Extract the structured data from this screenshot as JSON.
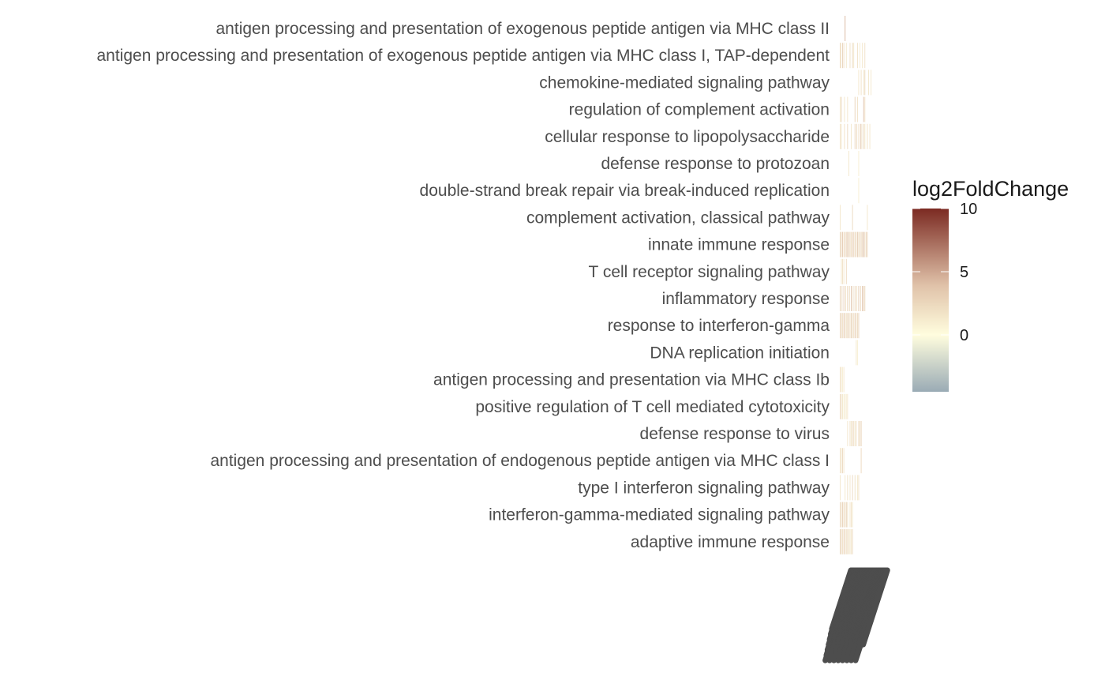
{
  "chart_data": {
    "type": "heatmap",
    "title": "",
    "xlabel": "",
    "ylabel": "",
    "rows": [
      "antigen processing and presentation of exogenous peptide antigen via MHC class II",
      "antigen processing and presentation of exogenous peptide antigen via MHC class I, TAP-dependent",
      "chemokine-mediated signaling pathway",
      "regulation of complement activation",
      "cellular response to lipopolysaccharide",
      "defense response to protozoan",
      "double-strand break repair via break-induced replication",
      "complement activation, classical pathway",
      "innate immune response",
      "T cell receptor signaling pathway",
      "inflammatory response",
      "response to interferon-gamma",
      "DNA replication initiation",
      "antigen processing and presentation via MHC class Ib",
      "positive regulation of T cell mediated cytotoxicity",
      "defense response to virus",
      "antigen processing and presentation of endogenous peptide antigen via MHC class I",
      "type I interferon signaling pathway",
      "interferon-gamma-mediated signaling pathway",
      "adaptive immune response"
    ],
    "gene_columns": 60,
    "cells": [
      [
        [
          8,
          4.5
        ]
      ],
      [
        [
          0,
          2.5
        ],
        [
          1,
          1.5
        ],
        [
          4,
          3.0
        ],
        [
          6,
          2.0
        ],
        [
          10,
          1.5
        ],
        [
          16,
          2.0
        ],
        [
          20,
          2.5
        ],
        [
          22,
          1.5
        ],
        [
          28,
          2.0
        ],
        [
          32,
          1.0
        ],
        [
          36,
          1.5
        ],
        [
          40,
          2.0
        ]
      ],
      [
        [
          30,
          1.5
        ],
        [
          34,
          2.0
        ],
        [
          38,
          1.5
        ],
        [
          40,
          2.5
        ],
        [
          46,
          1.5
        ],
        [
          50,
          1.5
        ]
      ],
      [
        [
          0,
          1.5
        ],
        [
          2,
          2.5
        ],
        [
          7,
          1.5
        ],
        [
          12,
          1.5
        ],
        [
          24,
          3.0
        ],
        [
          28,
          2.0
        ],
        [
          38,
          4.0
        ],
        [
          40,
          2.0
        ]
      ],
      [
        [
          0,
          2.0
        ],
        [
          2,
          1.5
        ],
        [
          7,
          2.0
        ],
        [
          12,
          2.5
        ],
        [
          18,
          1.5
        ],
        [
          24,
          3.0
        ],
        [
          27,
          2.5
        ],
        [
          30,
          2.0
        ],
        [
          33,
          3.5
        ],
        [
          35,
          2.0
        ],
        [
          38,
          2.5
        ],
        [
          40,
          1.5
        ],
        [
          44,
          2.0
        ],
        [
          48,
          1.5
        ]
      ],
      [
        [
          14,
          1.5
        ],
        [
          30,
          1.0
        ]
      ],
      [
        [
          30,
          1.0
        ]
      ],
      [
        [
          0,
          1.5
        ],
        [
          20,
          2.5
        ],
        [
          44,
          1.5
        ]
      ],
      [
        [
          0,
          3.0
        ],
        [
          2,
          2.5
        ],
        [
          4,
          3.5
        ],
        [
          6,
          2.0
        ],
        [
          8,
          3.0
        ],
        [
          10,
          2.5
        ],
        [
          12,
          4.0
        ],
        [
          14,
          2.5
        ],
        [
          16,
          3.0
        ],
        [
          18,
          2.0
        ],
        [
          20,
          3.5
        ],
        [
          22,
          2.5
        ],
        [
          24,
          3.0
        ],
        [
          26,
          2.0
        ],
        [
          28,
          3.5
        ],
        [
          30,
          2.5
        ],
        [
          32,
          2.0
        ],
        [
          34,
          3.0
        ],
        [
          36,
          2.5
        ],
        [
          38,
          4.5
        ],
        [
          40,
          2.0
        ],
        [
          42,
          3.0
        ],
        [
          44,
          2.5
        ]
      ],
      [
        [
          2,
          1.5
        ],
        [
          4,
          2.0
        ],
        [
          6,
          1.5
        ],
        [
          10,
          2.5
        ]
      ],
      [
        [
          0,
          3.0
        ],
        [
          3,
          2.5
        ],
        [
          6,
          3.5
        ],
        [
          9,
          2.0
        ],
        [
          12,
          3.0
        ],
        [
          15,
          2.5
        ],
        [
          18,
          4.0
        ],
        [
          21,
          2.5
        ],
        [
          24,
          3.0
        ],
        [
          27,
          2.0
        ],
        [
          30,
          3.5
        ],
        [
          33,
          2.5
        ],
        [
          36,
          4.0
        ],
        [
          38,
          3.0
        ],
        [
          40,
          2.5
        ]
      ],
      [
        [
          0,
          2.5
        ],
        [
          2,
          3.0
        ],
        [
          4,
          2.0
        ],
        [
          6,
          3.5
        ],
        [
          8,
          2.5
        ],
        [
          10,
          2.0
        ],
        [
          12,
          3.0
        ],
        [
          14,
          2.5
        ],
        [
          16,
          2.0
        ],
        [
          18,
          3.0
        ],
        [
          20,
          2.5
        ],
        [
          22,
          2.0
        ],
        [
          24,
          3.5
        ],
        [
          26,
          2.0
        ],
        [
          28,
          2.5
        ],
        [
          30,
          3.0
        ]
      ],
      [
        [
          26,
          1.5
        ],
        [
          28,
          1.0
        ]
      ],
      [
        [
          0,
          2.0
        ],
        [
          2,
          1.5
        ],
        [
          4,
          1.0
        ],
        [
          6,
          1.5
        ]
      ],
      [
        [
          0,
          2.5
        ],
        [
          2,
          2.0
        ],
        [
          4,
          1.5
        ],
        [
          6,
          1.0
        ],
        [
          8,
          1.5
        ],
        [
          10,
          1.0
        ],
        [
          12,
          1.5
        ]
      ],
      [
        [
          12,
          1.5
        ],
        [
          16,
          2.0
        ],
        [
          18,
          1.5
        ],
        [
          20,
          2.5
        ],
        [
          22,
          2.0
        ],
        [
          24,
          1.5
        ],
        [
          26,
          2.0
        ],
        [
          30,
          2.5
        ],
        [
          32,
          2.0
        ],
        [
          34,
          3.0
        ]
      ],
      [
        [
          0,
          2.0
        ],
        [
          2,
          1.5
        ],
        [
          4,
          2.5
        ],
        [
          6,
          1.5
        ],
        [
          34,
          2.5
        ]
      ],
      [
        [
          0,
          1.5
        ],
        [
          8,
          1.5
        ],
        [
          12,
          2.0
        ],
        [
          16,
          1.5
        ],
        [
          20,
          2.5
        ],
        [
          24,
          2.0
        ],
        [
          28,
          1.5
        ],
        [
          30,
          2.0
        ]
      ],
      [
        [
          0,
          2.5
        ],
        [
          2,
          2.0
        ],
        [
          4,
          3.0
        ],
        [
          6,
          2.5
        ],
        [
          8,
          2.0
        ],
        [
          10,
          3.0
        ],
        [
          12,
          2.0
        ],
        [
          16,
          1.5
        ],
        [
          18,
          2.0
        ],
        [
          20,
          1.5
        ]
      ],
      [
        [
          0,
          3.0
        ],
        [
          2,
          2.5
        ],
        [
          4,
          2.0
        ],
        [
          6,
          3.0
        ],
        [
          8,
          2.5
        ],
        [
          10,
          2.0
        ],
        [
          12,
          2.5
        ],
        [
          14,
          1.5
        ],
        [
          16,
          2.0
        ],
        [
          18,
          1.5
        ],
        [
          20,
          2.5
        ]
      ]
    ],
    "legend": {
      "title": "log2FoldChange",
      "placement": "right",
      "ticks": [
        10,
        5,
        0
      ],
      "range": [
        -4.5,
        10.0
      ],
      "colors": {
        "low": "#9aabb5",
        "mid": "#fffdde",
        "mid_high": "#e0c2a9",
        "high": "#7b2a22"
      }
    },
    "x_tick_labels_visible": "overlapping illegible gene names rendered rotated"
  }
}
